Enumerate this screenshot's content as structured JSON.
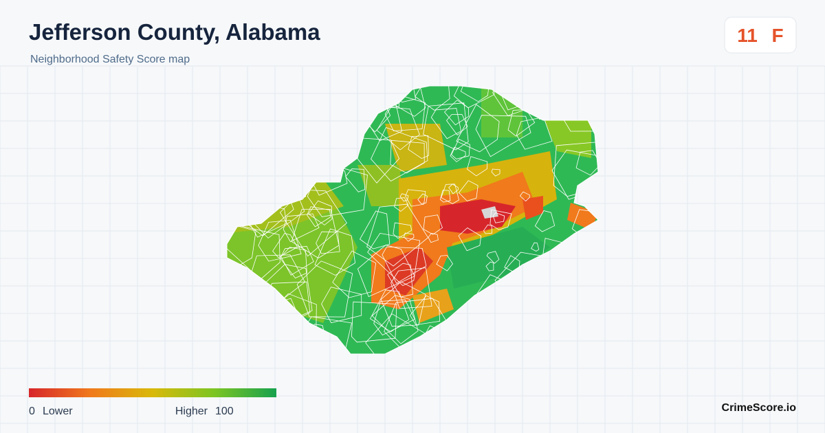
{
  "header": {
    "title": "Jefferson County, Alabama",
    "subtitle": "Neighborhood Safety Score map"
  },
  "score": {
    "value": "11",
    "grade": "F"
  },
  "legend": {
    "min": "0",
    "min_label": "Lower",
    "max_label": "Higher",
    "max": "100"
  },
  "footer": {
    "brand": "CrimeScore.io"
  }
}
